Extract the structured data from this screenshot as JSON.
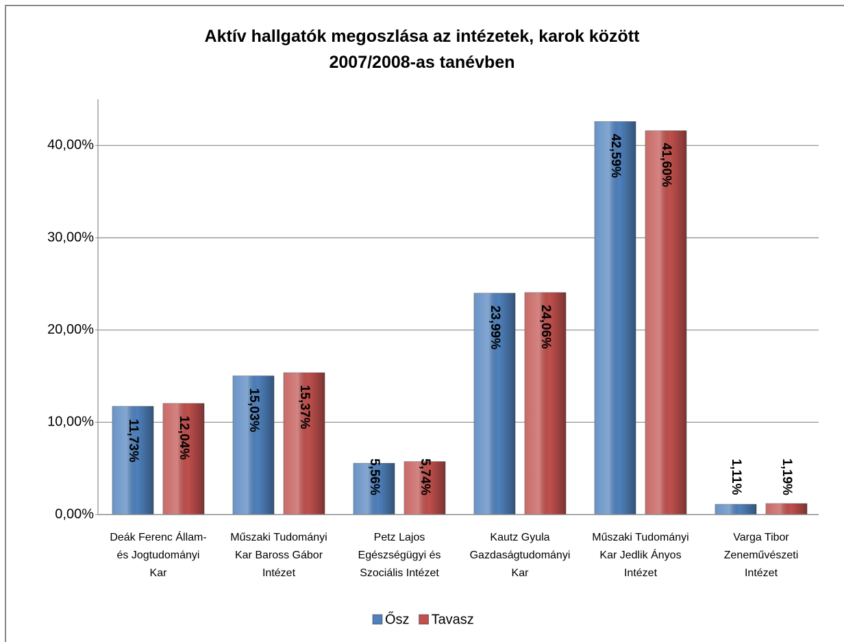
{
  "chart_data": {
    "type": "bar",
    "title": "Aktív hallgatók megoszlása az intézetek, karok között\n2007/2008-as tanévben",
    "categories": [
      "Deák Ferenc Állam-\nés Jogtudományi\nKar",
      "Műszaki Tudományi\nKar Baross Gábor\nIntézet",
      "Petz Lajos\nEgészségügyi és\nSzociális Intézet",
      "Kautz Gyula\nGazdaságtudományi\nKar",
      "Műszaki Tudományi\nKar Jedlik Ányos\nIntézet",
      "Varga Tibor\nZeneművészeti\nIntézet"
    ],
    "series": [
      {
        "name": "Ősz",
        "color": "#4f81bd",
        "values": [
          11.73,
          15.03,
          5.56,
          23.99,
          42.59,
          1.11
        ],
        "value_labels": [
          "11,73%",
          "15,03%",
          "5,56%",
          "23,99%",
          "42,59%",
          "1,11%"
        ]
      },
      {
        "name": "Tavasz",
        "color": "#c0504d",
        "values": [
          12.04,
          15.37,
          5.74,
          24.06,
          41.6,
          1.19
        ],
        "value_labels": [
          "12,04%",
          "15,37%",
          "5,74%",
          "24,06%",
          "41,60%",
          "1,19%"
        ]
      }
    ],
    "ylim": [
      0,
      45
    ],
    "yticks": [
      {
        "value": 0,
        "label": "0,00%"
      },
      {
        "value": 10,
        "label": "10,00%"
      },
      {
        "value": 20,
        "label": "20,00%"
      },
      {
        "value": 30,
        "label": "30,00%"
      },
      {
        "value": 40,
        "label": "40,00%"
      }
    ],
    "grid": true,
    "legend": "bottom"
  }
}
